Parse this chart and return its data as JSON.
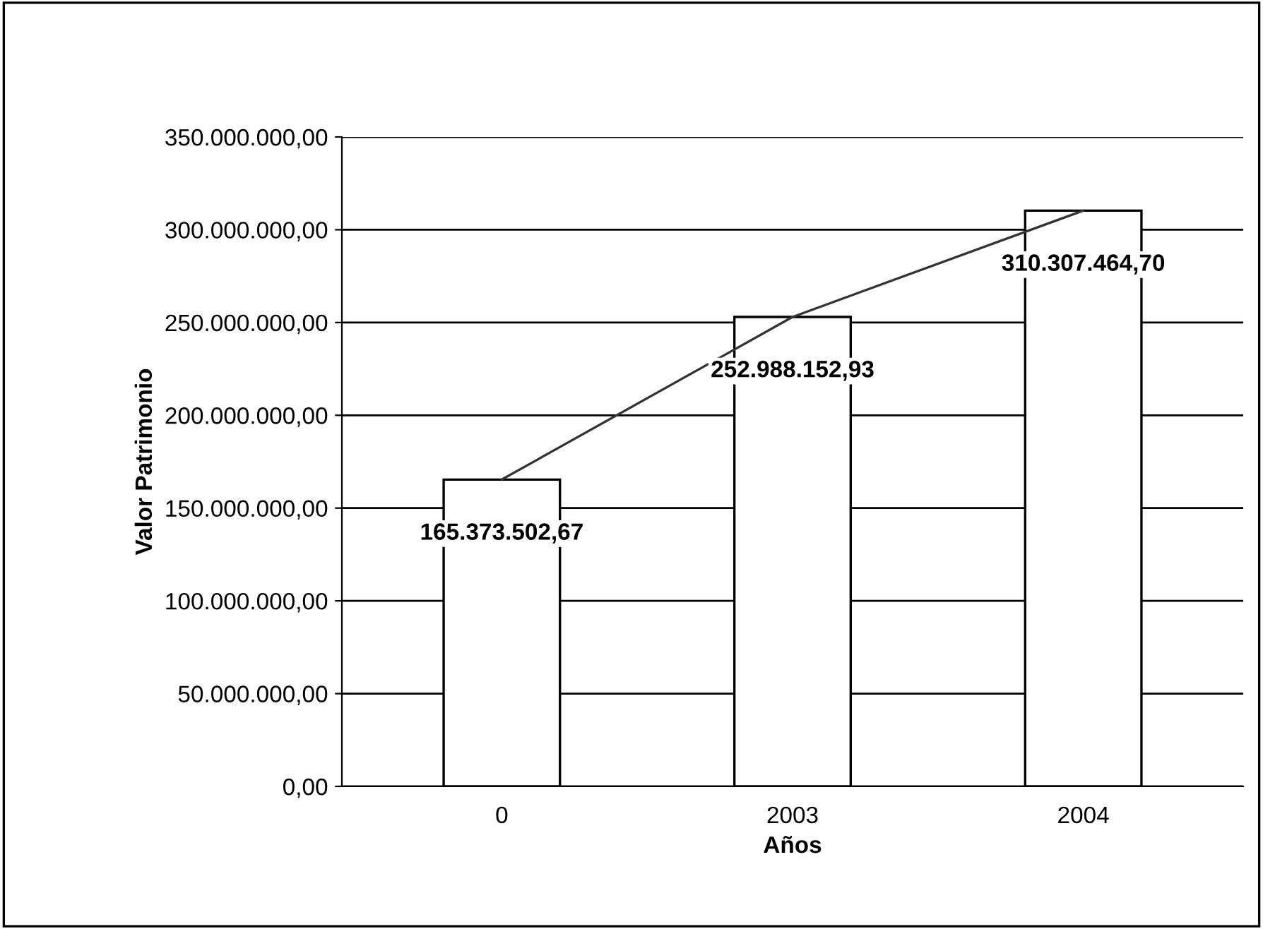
{
  "chart_data": {
    "type": "bar",
    "xlabel": "Años",
    "ylabel": "Valor Patrimonio",
    "categories": [
      "0",
      "2003",
      "2004"
    ],
    "series": [
      {
        "type": "bar",
        "color": "#ffffff",
        "values": [
          165373502.67,
          252988152.93,
          310307464.7
        ],
        "value_labels": [
          "165.373.502,67",
          "252.988.152,93",
          "310.307.464,70"
        ]
      },
      {
        "type": "line",
        "color": "#333333",
        "values": [
          165373502.67,
          252988152.93,
          310307464.7
        ]
      }
    ],
    "ylim": [
      0,
      350000000
    ],
    "yticks": [
      {
        "value": 0,
        "label": "0,00"
      },
      {
        "value": 50000000,
        "label": "50.000.000,00"
      },
      {
        "value": 100000000,
        "label": "100.000.000,00"
      },
      {
        "value": 150000000,
        "label": "150.000.000,00"
      },
      {
        "value": 200000000,
        "label": "200.000.000,00"
      },
      {
        "value": 250000000,
        "label": "250.000.000,00"
      },
      {
        "value": 300000000,
        "label": "300.000.000,00"
      },
      {
        "value": 350000000,
        "label": "350.000.000,00"
      }
    ],
    "grid": "y",
    "legend": false,
    "marker": "none",
    "line_style": "solid"
  }
}
